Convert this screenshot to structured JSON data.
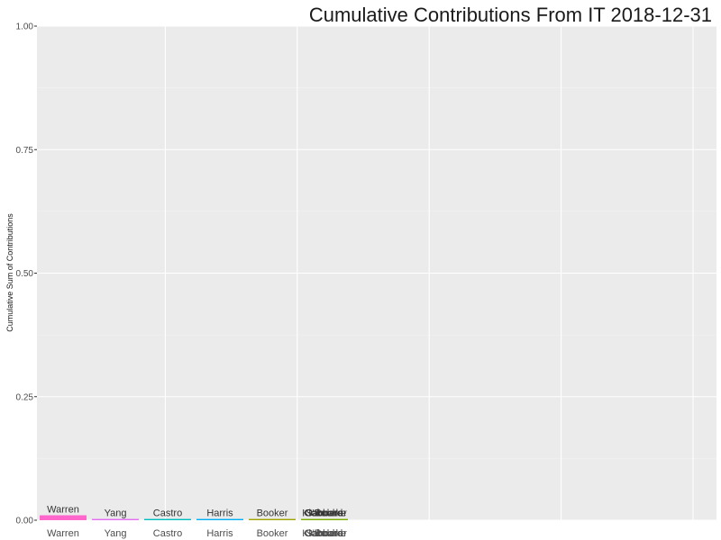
{
  "chart_data": {
    "type": "bar",
    "title": "Cumulative Contributions From  IT  2018-12-31",
    "xlabel": "",
    "ylabel": "Cumulative Sum of Contributions",
    "ylim": [
      0,
      1.0
    ],
    "yticks": [
      "0.00",
      "0.25",
      "0.50",
      "0.75",
      "1.00"
    ],
    "grid": true,
    "categories": [
      "Warren",
      "Yang",
      "Castro",
      "Harris",
      "Booker",
      "Klobuchar"
    ],
    "values": [
      0.01,
      0.002,
      0.002,
      0.002,
      0.002,
      0.0
    ],
    "colors": [
      "#FF66CC",
      "#E76BF3",
      "#00BFC4",
      "#00B0F6",
      "#A3A500",
      "#7CAE00"
    ],
    "extra_labels": [
      "Gabbard",
      "Sanders",
      "O'Rourke"
    ],
    "bar_labels": [
      "Warren",
      "Yang",
      "Castro",
      "Harris",
      "Booker",
      "Klobuchar"
    ]
  }
}
